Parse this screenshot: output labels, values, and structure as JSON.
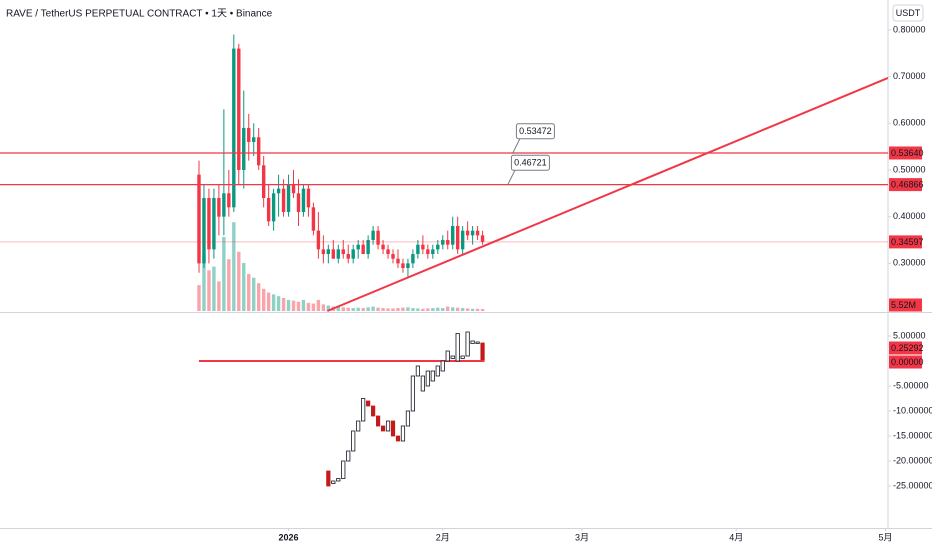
{
  "chart_data": [
    {
      "type": "candlestick",
      "title": "RAVE / TetherUS PERPETUAL CONTRACT • 1天 • Binance",
      "currency": "USDT",
      "x": [
        0,
        1,
        2,
        3,
        4,
        5,
        6,
        7,
        8,
        9,
        10,
        11,
        12,
        13,
        14,
        15,
        16,
        17,
        18,
        19,
        20,
        21,
        22,
        23,
        24,
        25,
        26,
        27,
        28,
        29,
        30,
        31,
        32,
        33,
        34,
        35,
        36,
        37,
        38,
        39,
        40,
        41,
        42,
        43,
        44,
        45,
        46,
        47,
        48,
        49,
        50,
        51,
        52,
        53,
        54,
        55,
        56,
        57
      ],
      "open": [
        0.49,
        0.3,
        0.44,
        0.33,
        0.44,
        0.4,
        0.45,
        0.42,
        0.76,
        0.5,
        0.59,
        0.56,
        0.57,
        0.51,
        0.44,
        0.39,
        0.45,
        0.46,
        0.41,
        0.47,
        0.45,
        0.41,
        0.46,
        0.42,
        0.37,
        0.33,
        0.32,
        0.33,
        0.31,
        0.33,
        0.32,
        0.31,
        0.33,
        0.34,
        0.32,
        0.35,
        0.37,
        0.34,
        0.33,
        0.32,
        0.31,
        0.3,
        0.29,
        0.3,
        0.32,
        0.34,
        0.33,
        0.32,
        0.33,
        0.34,
        0.35,
        0.34,
        0.38,
        0.33,
        0.37,
        0.36,
        0.37,
        0.36
      ],
      "high": [
        0.52,
        0.47,
        0.46,
        0.46,
        0.47,
        0.63,
        0.5,
        0.79,
        0.77,
        0.67,
        0.62,
        0.6,
        0.59,
        0.53,
        0.47,
        0.46,
        0.49,
        0.48,
        0.49,
        0.5,
        0.48,
        0.47,
        0.47,
        0.43,
        0.41,
        0.36,
        0.34,
        0.35,
        0.34,
        0.35,
        0.34,
        0.34,
        0.35,
        0.35,
        0.36,
        0.38,
        0.38,
        0.35,
        0.34,
        0.33,
        0.33,
        0.31,
        0.31,
        0.33,
        0.35,
        0.36,
        0.34,
        0.34,
        0.35,
        0.36,
        0.37,
        0.4,
        0.4,
        0.38,
        0.39,
        0.38,
        0.38,
        0.37
      ],
      "low": [
        0.28,
        0.29,
        0.3,
        0.31,
        0.36,
        0.36,
        0.4,
        0.41,
        0.47,
        0.46,
        0.52,
        0.53,
        0.5,
        0.42,
        0.38,
        0.37,
        0.4,
        0.4,
        0.4,
        0.44,
        0.38,
        0.4,
        0.4,
        0.36,
        0.31,
        0.3,
        0.3,
        0.31,
        0.3,
        0.31,
        0.3,
        0.3,
        0.31,
        0.32,
        0.31,
        0.34,
        0.33,
        0.32,
        0.31,
        0.3,
        0.29,
        0.28,
        0.27,
        0.29,
        0.31,
        0.32,
        0.31,
        0.31,
        0.32,
        0.33,
        0.33,
        0.33,
        0.32,
        0.32,
        0.35,
        0.34,
        0.35,
        0.34
      ],
      "close": [
        0.3,
        0.44,
        0.33,
        0.44,
        0.4,
        0.45,
        0.42,
        0.76,
        0.5,
        0.59,
        0.56,
        0.57,
        0.51,
        0.44,
        0.39,
        0.45,
        0.46,
        0.41,
        0.47,
        0.45,
        0.41,
        0.46,
        0.42,
        0.37,
        0.33,
        0.32,
        0.33,
        0.31,
        0.33,
        0.32,
        0.31,
        0.33,
        0.34,
        0.32,
        0.35,
        0.37,
        0.34,
        0.33,
        0.32,
        0.31,
        0.3,
        0.29,
        0.3,
        0.32,
        0.34,
        0.33,
        0.32,
        0.33,
        0.34,
        0.35,
        0.34,
        0.38,
        0.33,
        0.37,
        0.36,
        0.37,
        0.36,
        0.34597
      ],
      "volume": [
        70,
        150,
        110,
        120,
        80,
        200,
        140,
        240,
        160,
        130,
        100,
        90,
        75,
        60,
        50,
        45,
        40,
        35,
        30,
        28,
        25,
        30,
        22,
        20,
        30,
        18,
        15,
        12,
        14,
        10,
        9,
        8,
        9,
        8,
        10,
        12,
        9,
        8,
        7,
        7,
        8,
        9,
        10,
        8,
        7,
        6,
        7,
        8,
        9,
        8,
        12,
        10,
        9,
        8,
        7,
        6,
        6,
        5.52
      ],
      "volume_last_label": "5.52M",
      "up_color": "#089981",
      "down_color": "#f23645",
      "xlim": [
        -40,
        138.5
      ],
      "xticks": [
        {
          "value": 18,
          "label": "2026"
        },
        {
          "value": 49,
          "label": "2月"
        },
        {
          "value": 77,
          "label": "3月"
        },
        {
          "value": 108,
          "label": "4月"
        },
        {
          "value": 138,
          "label": "5月"
        }
      ],
      "ylim": [
        0.198,
        0.864
      ],
      "yticks": [
        {
          "value": 0.3,
          "label": "0.30000"
        },
        {
          "value": 0.4,
          "label": "0.40000"
        },
        {
          "value": 0.5,
          "label": "0.50000"
        },
        {
          "value": 0.6,
          "label": "0.60000"
        },
        {
          "value": 0.7,
          "label": "0.70000"
        },
        {
          "value": 0.8,
          "label": "0.80000"
        }
      ],
      "hlines": [
        {
          "value": 0.5364,
          "label": "0.53640"
        },
        0.46866
      ],
      "trend_line": {
        "x": [
          25.8,
          138.5
        ],
        "values": [
          0.198,
          0.697
        ]
      },
      "annotations": [
        {
          "x": 63,
          "value": 0.53472
        },
        {
          "x": 62,
          "value": 0.46721
        }
      ]
    },
    {
      "type": "oscillator",
      "x": [
        26,
        27,
        28,
        29,
        30,
        31,
        32,
        33,
        34,
        35,
        36,
        37,
        38,
        39,
        40,
        41,
        42,
        43,
        44,
        45,
        46,
        47,
        48,
        49,
        50,
        51,
        52,
        53,
        54,
        55,
        56,
        57
      ],
      "open": [
        -22,
        -24.5,
        -24,
        -23.5,
        -20,
        -18,
        -14,
        -12,
        -8,
        -9,
        -11,
        -13,
        -14,
        -12,
        -15,
        -16,
        -13,
        -10,
        -3,
        -6,
        -5,
        -4,
        -3,
        -2,
        0,
        0.5,
        0,
        0.5,
        1,
        3.5,
        3.5,
        3.6
      ],
      "close": [
        -25,
        -24,
        -23.5,
        -20,
        -18,
        -14,
        -12,
        -7.5,
        -9,
        -11,
        -13,
        -14,
        -12,
        -15,
        -16,
        -13,
        -10,
        -3,
        -1,
        -3,
        -2,
        -2,
        -1,
        0,
        2,
        1,
        5.5,
        1,
        5.8,
        4,
        3.8,
        0.25292
      ],
      "ylim": [
        -33.4,
        9.6
      ],
      "yticks": [
        {
          "value": 5,
          "label": "5.00000"
        },
        {
          "value": -5,
          "label": "-5.00000"
        },
        {
          "value": -10,
          "label": "-10.00000"
        },
        {
          "value": -15,
          "label": "-15.00000"
        },
        {
          "value": -20,
          "label": "-20.00000"
        },
        {
          "value": -25,
          "label": "-25.00000"
        }
      ],
      "zero_line": {
        "value": 0,
        "label": "0.00000"
      }
    }
  ]
}
